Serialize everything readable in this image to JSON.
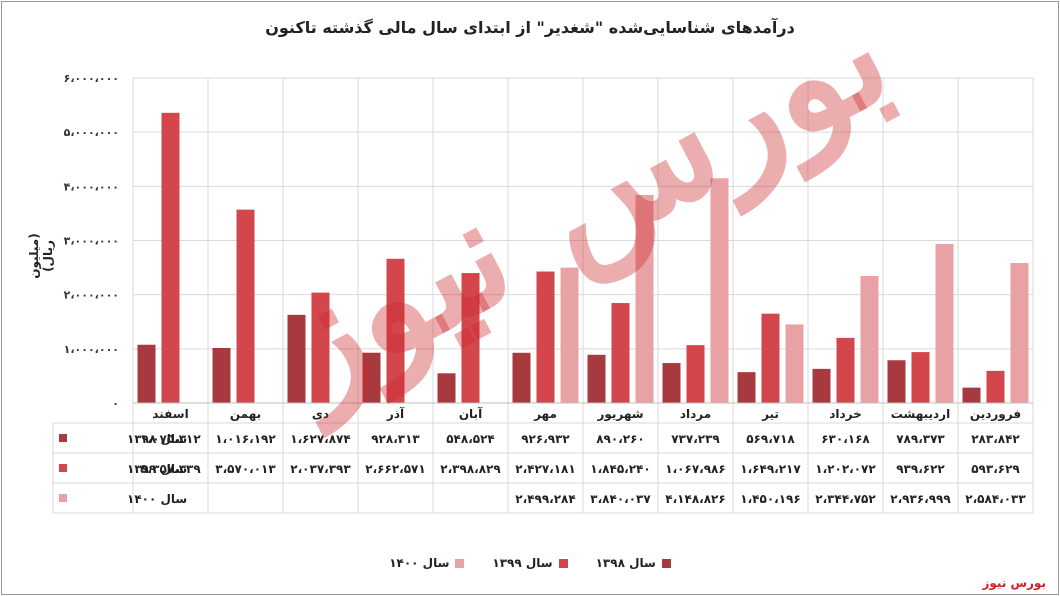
{
  "chart_data": {
    "type": "bar",
    "title": "درآمدهای شناسایی‌شده \"شغدیر\" از ابتدای سال مالی گذشته تاکنون",
    "ylabel": "(میلیون ریال)",
    "ylim": [
      0,
      6000000
    ],
    "yticks": [
      0,
      1000000,
      2000000,
      3000000,
      4000000,
      5000000,
      6000000
    ],
    "ytick_labels": [
      "۰",
      "۱،۰۰۰،۰۰۰",
      "۲،۰۰۰،۰۰۰",
      "۳،۰۰۰،۰۰۰",
      "۴،۰۰۰،۰۰۰",
      "۵،۰۰۰،۰۰۰",
      "۶،۰۰۰،۰۰۰"
    ],
    "categories": [
      "فروردین",
      "اردیبهشت",
      "خرداد",
      "تیر",
      "مرداد",
      "شهریور",
      "مهر",
      "آبان",
      "آذر",
      "دی",
      "بهمن",
      "اسفند"
    ],
    "series": [
      {
        "name": "سال ۱۳۹۸",
        "color": "#a83a3f",
        "values": [
          283842,
          789373,
          630168,
          569718,
          737239,
          890260,
          926932,
          548524,
          928313,
          1627874,
          1016192,
          1075312
        ],
        "labels": [
          "۲۸۳،۸۴۲",
          "۷۸۹،۳۷۳",
          "۶۳۰،۱۶۸",
          "۵۶۹،۷۱۸",
          "۷۳۷،۲۳۹",
          "۸۹۰،۲۶۰",
          "۹۲۶،۹۳۲",
          "۵۴۸،۵۲۴",
          "۹۲۸،۳۱۳",
          "۱،۶۲۷،۸۷۴",
          "۱،۰۱۶،۱۹۲",
          "۱،۰۷۵،۳۱۲"
        ]
      },
      {
        "name": "سال ۱۳۹۹",
        "color": "#d2464c",
        "values": [
          593629,
          939622,
          1202072,
          1649217,
          1067986,
          1845240,
          2427181,
          2398829,
          2662571,
          2037393,
          3570013,
          5357339
        ],
        "labels": [
          "۵۹۳،۶۲۹",
          "۹۳۹،۶۲۲",
          "۱،۲۰۲،۰۷۲",
          "۱،۶۴۹،۲۱۷",
          "۱،۰۶۷،۹۸۶",
          "۱،۸۴۵،۲۴۰",
          "۲،۴۲۷،۱۸۱",
          "۲،۳۹۸،۸۲۹",
          "۲،۶۶۲،۵۷۱",
          "۲،۰۳۷،۳۹۳",
          "۳،۵۷۰،۰۱۳",
          "۵،۳۵۷،۳۳۹"
        ]
      },
      {
        "name": "سال ۱۴۰۰",
        "color": "#e8a2a6",
        "values": [
          2584033,
          2936999,
          2344752,
          1450196,
          4148826,
          3840037,
          2499284,
          null,
          null,
          null,
          null,
          null
        ],
        "labels": [
          "۲،۵۸۴،۰۳۳",
          "۲،۹۳۶،۹۹۹",
          "۲،۳۴۴،۷۵۲",
          "۱،۴۵۰،۱۹۶",
          "۴،۱۴۸،۸۲۶",
          "۳،۸۴۰،۰۳۷",
          "۲،۴۹۹،۲۸۴",
          "",
          "",
          "",
          "",
          ""
        ]
      }
    ],
    "grid": true,
    "legend": "bottom"
  },
  "watermark": "بورس نیوز",
  "brand": "بورس نیوز"
}
